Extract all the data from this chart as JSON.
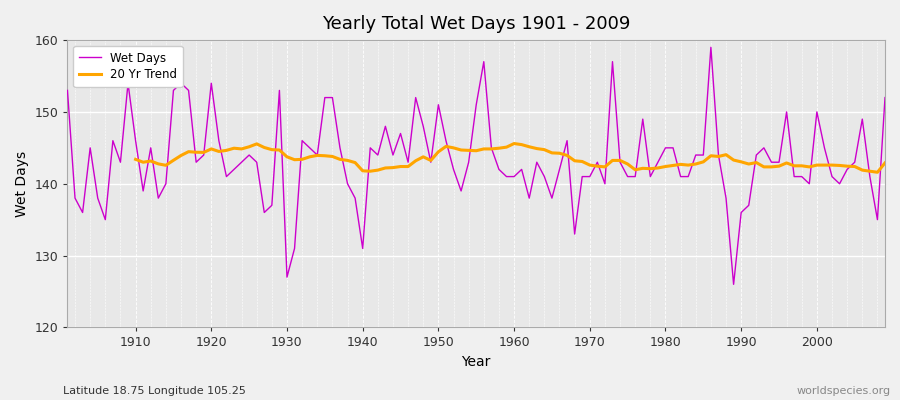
{
  "title": "Yearly Total Wet Days 1901 - 2009",
  "xlabel": "Year",
  "ylabel": "Wet Days",
  "subtitle": "Latitude 18.75 Longitude 105.25",
  "watermark": "worldspecies.org",
  "ylim": [
    120,
    160
  ],
  "yticks": [
    120,
    130,
    140,
    150,
    160
  ],
  "wet_days_color": "#CC00CC",
  "trend_color": "#FFA500",
  "fig_bg_color": "#F0F0F0",
  "plot_bg_color": "#E8E8E8",
  "years": [
    1901,
    1902,
    1903,
    1904,
    1905,
    1906,
    1907,
    1908,
    1909,
    1910,
    1911,
    1912,
    1913,
    1914,
    1915,
    1916,
    1917,
    1918,
    1919,
    1920,
    1921,
    1922,
    1923,
    1924,
    1925,
    1926,
    1927,
    1928,
    1929,
    1930,
    1931,
    1932,
    1933,
    1934,
    1935,
    1936,
    1937,
    1938,
    1939,
    1940,
    1941,
    1942,
    1943,
    1944,
    1945,
    1946,
    1947,
    1948,
    1949,
    1950,
    1951,
    1952,
    1953,
    1954,
    1955,
    1956,
    1957,
    1958,
    1959,
    1960,
    1961,
    1962,
    1963,
    1964,
    1965,
    1966,
    1967,
    1968,
    1969,
    1970,
    1971,
    1972,
    1973,
    1974,
    1975,
    1976,
    1977,
    1978,
    1979,
    1980,
    1981,
    1982,
    1983,
    1984,
    1985,
    1986,
    1987,
    1988,
    1989,
    1990,
    1991,
    1992,
    1993,
    1994,
    1995,
    1996,
    1997,
    1998,
    1999,
    2000,
    2001,
    2002,
    2003,
    2004,
    2005,
    2006,
    2007,
    2008,
    2009
  ],
  "wet_days": [
    153,
    138,
    136,
    145,
    138,
    135,
    146,
    143,
    154,
    146,
    139,
    145,
    138,
    140,
    153,
    154,
    153,
    143,
    144,
    154,
    146,
    141,
    142,
    143,
    144,
    143,
    136,
    137,
    153,
    127,
    131,
    146,
    145,
    144,
    152,
    152,
    145,
    140,
    138,
    131,
    145,
    144,
    148,
    144,
    147,
    143,
    152,
    148,
    143,
    151,
    146,
    142,
    139,
    143,
    151,
    157,
    145,
    142,
    141,
    141,
    142,
    138,
    143,
    141,
    138,
    142,
    146,
    133,
    141,
    141,
    143,
    140,
    157,
    143,
    141,
    141,
    149,
    141,
    143,
    145,
    145,
    141,
    141,
    144,
    144,
    159,
    144,
    138,
    126,
    136,
    137,
    144,
    145,
    143,
    143,
    150,
    141,
    141,
    140,
    150,
    145,
    141,
    140,
    142,
    143,
    149,
    141,
    135,
    152
  ]
}
